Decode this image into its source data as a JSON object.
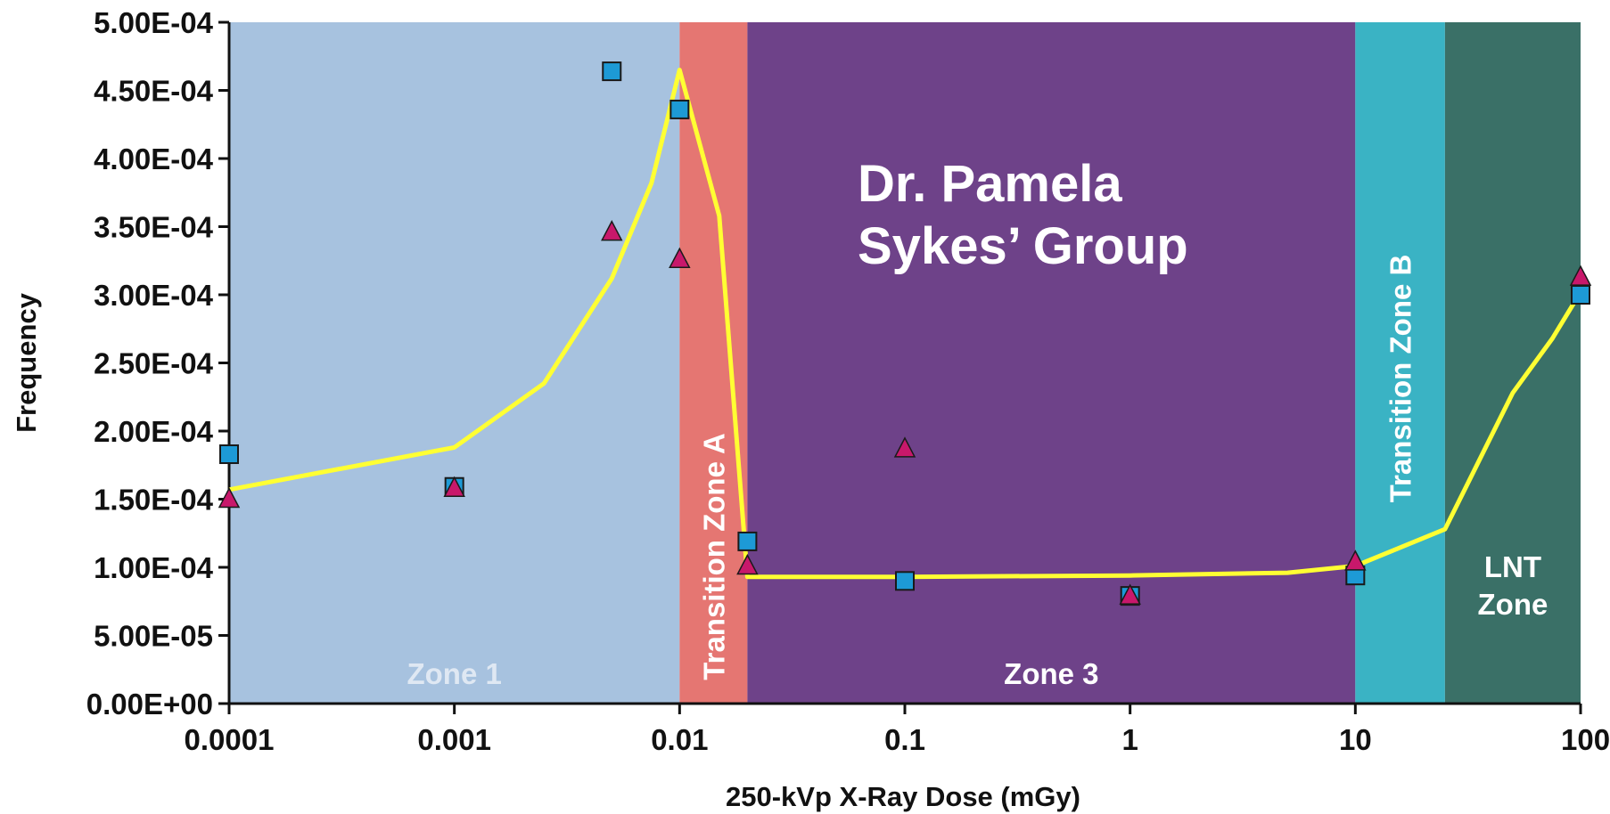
{
  "chart_data": {
    "type": "scatter",
    "title": "",
    "xlabel": "250-kVp X-Ray Dose (mGy)",
    "ylabel": "Frequency",
    "x_scale": "log",
    "xlim": [
      0.0001,
      100
    ],
    "ylim": [
      0,
      0.0005
    ],
    "x_ticks": [
      {
        "value": 0.0001,
        "label": "0.0001"
      },
      {
        "value": 0.001,
        "label": "0.001"
      },
      {
        "value": 0.01,
        "label": "0.01"
      },
      {
        "value": 0.1,
        "label": "0.1"
      },
      {
        "value": 1,
        "label": "1"
      },
      {
        "value": 10,
        "label": "10"
      },
      {
        "value": 100,
        "label": "100"
      }
    ],
    "y_ticks": [
      {
        "value": 0,
        "label": "0.00E+00"
      },
      {
        "value": 5e-05,
        "label": "5.00E-05"
      },
      {
        "value": 0.0001,
        "label": "1.00E-04"
      },
      {
        "value": 0.00015,
        "label": "1.50E-04"
      },
      {
        "value": 0.0002,
        "label": "2.00E-04"
      },
      {
        "value": 0.00025,
        "label": "2.50E-04"
      },
      {
        "value": 0.0003,
        "label": "3.00E-04"
      },
      {
        "value": 0.00035,
        "label": "3.50E-04"
      },
      {
        "value": 0.0004,
        "label": "4.00E-04"
      },
      {
        "value": 0.00045,
        "label": "4.50E-04"
      },
      {
        "value": 0.0005,
        "label": "5.00E-04"
      }
    ],
    "zones": [
      {
        "label": "Zone 1",
        "from": 0.0001,
        "to": 0.01,
        "color": "#a7c2df",
        "label_orientation": "horizontal"
      },
      {
        "label": "Transition Zone A",
        "from": 0.01,
        "to": 0.02,
        "color": "#e57672",
        "label_orientation": "vertical"
      },
      {
        "label": "Zone 3",
        "from": 0.02,
        "to": 10,
        "color": "#6e4289",
        "label_orientation": "horizontal"
      },
      {
        "label": "Transition Zone B",
        "from": 10,
        "to": 25,
        "color": "#3ab3c4",
        "label_orientation": "vertical"
      },
      {
        "label": "LNT Zone",
        "label_lines": [
          "LNT",
          "Zone"
        ],
        "from": 25,
        "to": 100,
        "color": "#3a7067",
        "label_orientation": "horizontal"
      }
    ],
    "annotation": {
      "lines": [
        "Dr. Pamela",
        "Sykes’ Group"
      ],
      "color": "#ffffff"
    },
    "series": [
      {
        "marker": "square",
        "color": "#1d9ad6",
        "points": [
          {
            "x": 0.0001,
            "y": 0.000183
          },
          {
            "x": 0.001,
            "y": 0.000159
          },
          {
            "x": 0.005,
            "y": 0.000464
          },
          {
            "x": 0.01,
            "y": 0.000436
          },
          {
            "x": 0.02,
            "y": 0.000119
          },
          {
            "x": 0.1,
            "y": 9e-05
          },
          {
            "x": 1,
            "y": 7.9e-05
          },
          {
            "x": 10,
            "y": 9.4e-05
          },
          {
            "x": 100,
            "y": 0.0003
          }
        ]
      },
      {
        "marker": "triangle",
        "color": "#c8186b",
        "points": [
          {
            "x": 0.0001,
            "y": 0.00015
          },
          {
            "x": 0.001,
            "y": 0.000158
          },
          {
            "x": 0.005,
            "y": 0.000346
          },
          {
            "x": 0.01,
            "y": 0.000326
          },
          {
            "x": 0.02,
            "y": 0.000101
          },
          {
            "x": 0.1,
            "y": 0.000187
          },
          {
            "x": 1,
            "y": 7.9e-05
          },
          {
            "x": 10,
            "y": 0.000104
          },
          {
            "x": 100,
            "y": 0.000313
          }
        ]
      },
      {
        "marker": "line",
        "color": "#ffff33",
        "points": [
          {
            "x": 0.0001,
            "y": 0.000157
          },
          {
            "x": 0.001,
            "y": 0.000188
          },
          {
            "x": 0.0025,
            "y": 0.000235
          },
          {
            "x": 0.005,
            "y": 0.000312
          },
          {
            "x": 0.0075,
            "y": 0.000382
          },
          {
            "x": 0.01,
            "y": 0.000465
          },
          {
            "x": 0.015,
            "y": 0.000358
          },
          {
            "x": 0.02,
            "y": 9.3e-05
          },
          {
            "x": 0.1,
            "y": 9.3e-05
          },
          {
            "x": 1,
            "y": 9.4e-05
          },
          {
            "x": 5,
            "y": 9.6e-05
          },
          {
            "x": 10,
            "y": 0.000101
          },
          {
            "x": 25,
            "y": 0.000128
          },
          {
            "x": 50,
            "y": 0.000228
          },
          {
            "x": 75,
            "y": 0.000268
          },
          {
            "x": 100,
            "y": 0.000302
          }
        ]
      }
    ]
  }
}
